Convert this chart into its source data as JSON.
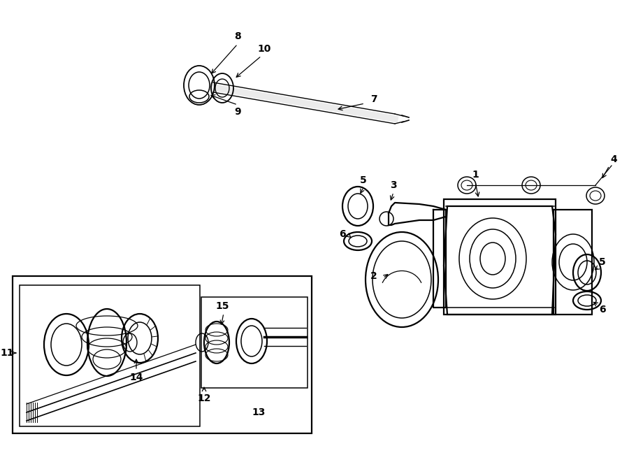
{
  "bg_color": "#ffffff",
  "line_color": "#000000",
  "fig_width": 9.0,
  "fig_height": 6.61,
  "dpi": 100,
  "lw": 1.1,
  "lw_thick": 1.6,
  "fontsize": 10,
  "fontsize_sm": 9
}
